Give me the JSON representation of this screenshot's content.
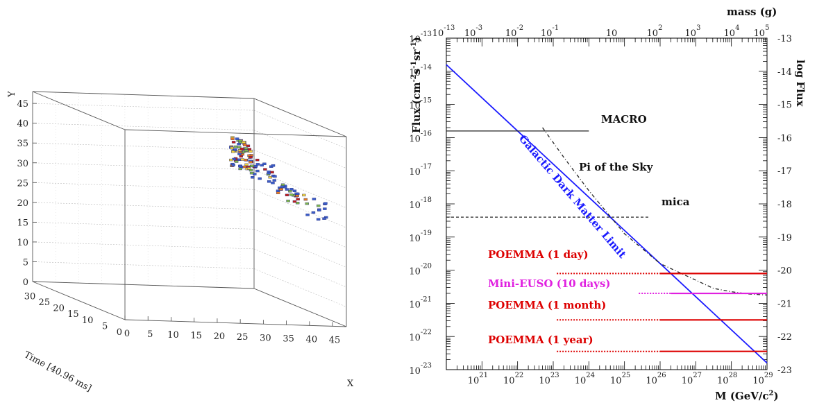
{
  "chart_data": [
    {
      "type": "scatter3d",
      "axes": {
        "y": {
          "label": "Y",
          "ticks": [
            0,
            5,
            10,
            15,
            20,
            25,
            30,
            35,
            40,
            45
          ],
          "range": [
            0,
            48
          ]
        },
        "time": {
          "label": "Time [40.96 ms]",
          "ticks": [
            0,
            5,
            10,
            15,
            20,
            25,
            30
          ],
          "range": [
            0,
            32
          ]
        },
        "x": {
          "label": "X",
          "ticks": [
            0,
            5,
            10,
            15,
            20,
            25,
            30,
            35,
            40,
            45
          ],
          "range": [
            0,
            48
          ]
        }
      },
      "clusters": [
        {
          "x": [
            22,
            28
          ],
          "y": [
            33,
            39
          ],
          "density": "high"
        },
        {
          "x": [
            28,
            33
          ],
          "y": [
            29,
            33
          ],
          "density": "medium"
        },
        {
          "x": [
            33,
            38
          ],
          "y": [
            26,
            30
          ],
          "density": "low"
        }
      ]
    },
    {
      "type": "line",
      "x_axis": {
        "label_main": "M (GeV/c",
        "label_sup": "2",
        "label_end": ")",
        "scale": "log",
        "range_exp": [
          20,
          29
        ],
        "tick_labels": [
          {
            "exp": 21,
            "base": "10",
            "sup": "21"
          },
          {
            "exp": 22,
            "base": "10",
            "sup": "22"
          },
          {
            "exp": 23,
            "base": "10",
            "sup": "23"
          },
          {
            "exp": 24,
            "base": "10",
            "sup": "24"
          },
          {
            "exp": 25,
            "base": "10",
            "sup": "25"
          },
          {
            "exp": 26,
            "base": "10",
            "sup": "26"
          },
          {
            "exp": 27,
            "base": "10",
            "sup": "27"
          },
          {
            "exp": 28,
            "base": "10",
            "sup": "28"
          },
          {
            "exp": 29,
            "base": "10",
            "sup": "29"
          }
        ]
      },
      "top_axis": {
        "label": "mass (g)",
        "scale": "log",
        "tick_labels": [
          {
            "exp": -13,
            "base": "10",
            "sup": "-13"
          },
          {
            "exp": -3,
            "base": "10",
            "sup": "-3"
          },
          {
            "exp": -2,
            "base": "10",
            "sup": "-2"
          },
          {
            "exp": -1,
            "base": "10",
            "sup": "-1"
          },
          {
            "exp": 1,
            "base": "10",
            "sup": ""
          },
          {
            "exp": 2,
            "base": "10",
            "sup": "2"
          },
          {
            "exp": 3,
            "base": "10",
            "sup": "3"
          },
          {
            "exp": 4,
            "base": "10",
            "sup": "4"
          },
          {
            "exp": 5,
            "base": "10",
            "sup": "5"
          }
        ]
      },
      "y_axis": {
        "label_main": "Flux (cm",
        "label_sup1": "-2",
        "label_mid1": "s",
        "label_sup2": "-1",
        "label_mid2": "sr",
        "label_sup3": "-1",
        "label_end": ")",
        "scale": "log",
        "range_exp": [
          -23,
          -13
        ],
        "tick_labels": [
          {
            "exp": -13,
            "base": "10",
            "sup": "-13"
          },
          {
            "exp": -14,
            "base": "10",
            "sup": "-14"
          },
          {
            "exp": -15,
            "base": "10",
            "sup": "-15"
          },
          {
            "exp": -16,
            "base": "10",
            "sup": "-16"
          },
          {
            "exp": -17,
            "base": "10",
            "sup": "-17"
          },
          {
            "exp": -18,
            "base": "10",
            "sup": "-18"
          },
          {
            "exp": -19,
            "base": "10",
            "sup": "-19"
          },
          {
            "exp": -20,
            "base": "10",
            "sup": "-20"
          },
          {
            "exp": -21,
            "base": "10",
            "sup": "-21"
          },
          {
            "exp": -22,
            "base": "10",
            "sup": "-22"
          },
          {
            "exp": -23,
            "base": "10",
            "sup": "-23"
          }
        ]
      },
      "right_axis": {
        "label": "log Flux",
        "tick_labels": [
          "-13",
          "-14",
          "-15",
          "-16",
          "-17",
          "-18",
          "-19",
          "-20",
          "-21",
          "-22",
          "-23"
        ]
      },
      "series": [
        {
          "name": "Galactic Dark Matter Limit",
          "color": "#1a1aff",
          "style": "solid",
          "x_exp": [
            20,
            29
          ],
          "y_exp": [
            -13.8,
            -22.8
          ]
        },
        {
          "name": "MACRO",
          "color": "#222222",
          "style": "solid",
          "x_exp": [
            20,
            24.0
          ],
          "y_exp": [
            -15.8,
            -15.8
          ]
        },
        {
          "name": "mica",
          "color": "#222222",
          "style": "dashed",
          "x_exp": [
            20,
            25.7
          ],
          "y_exp": [
            -18.4,
            -18.4
          ]
        },
        {
          "name": "Pi of the Sky",
          "color": "#222222",
          "style": "dashdot",
          "x_exp": [
            22.7,
            23.3,
            24.0,
            25.0,
            26.0,
            27.0,
            27.5,
            28.0,
            28.5,
            29.0
          ],
          "y_exp": [
            -15.7,
            -16.6,
            -17.6,
            -18.9,
            -19.8,
            -20.3,
            -20.55,
            -20.65,
            -20.72,
            -20.75
          ]
        },
        {
          "name": "POEMMA (1 day)",
          "color": "#dd0000",
          "style": "dotted-solid",
          "x_exp": [
            23.1,
            26.0,
            29.0
          ],
          "y_exp": [
            -20.1,
            -20.1,
            -20.1
          ]
        },
        {
          "name": "Mini-EUSO (10 days)",
          "color": "#e020e0",
          "style": "dotted-solid",
          "x_exp": [
            25.4,
            26.3,
            29.0
          ],
          "y_exp": [
            -20.7,
            -20.7,
            -20.7
          ]
        },
        {
          "name": "POEMMA (1 month)",
          "color": "#dd0000",
          "style": "dotted-solid",
          "x_exp": [
            23.1,
            26.0,
            29.0
          ],
          "y_exp": [
            -21.5,
            -21.5,
            -21.5
          ]
        },
        {
          "name": "POEMMA (1 year)",
          "color": "#dd0000",
          "style": "dotted-solid",
          "x_exp": [
            23.1,
            26.0,
            29.0
          ],
          "y_exp": [
            -22.45,
            -22.45,
            -22.45
          ]
        }
      ],
      "annotations": [
        {
          "text": "MACRO",
          "color": "#111111"
        },
        {
          "text": "Pi of the Sky",
          "color": "#111111"
        },
        {
          "text": "mica",
          "color": "#111111"
        },
        {
          "text": "Galactic Dark Matter Limit",
          "color": "#1a1aff"
        },
        {
          "text": "POEMMA (1 day)",
          "color": "#dd0000"
        },
        {
          "text": "Mini-EUSO (10 days)",
          "color": "#e020e0"
        },
        {
          "text": "POEMMA (1 month)",
          "color": "#dd0000"
        },
        {
          "text": "POEMMA (1 year)",
          "color": "#dd0000"
        }
      ]
    }
  ]
}
